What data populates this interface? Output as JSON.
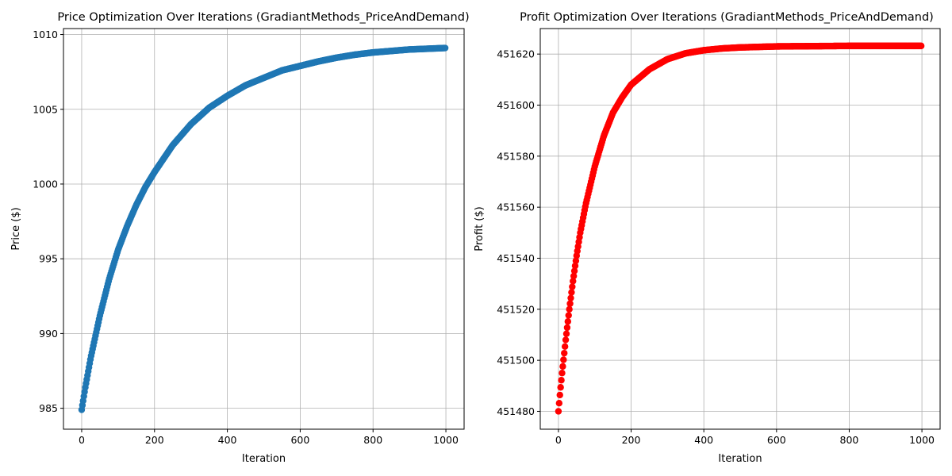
{
  "chart_data": [
    {
      "type": "scatter",
      "title": "Price Optimization Over Iterations (GradiantMethods_PriceAndDemand)",
      "xlabel": "Iteration",
      "ylabel": "Price ($)",
      "xlim": [
        -50,
        1050
      ],
      "ylim": [
        983.6,
        1010.4
      ],
      "xticks": [
        0,
        200,
        400,
        600,
        800,
        1000
      ],
      "yticks": [
        985,
        990,
        995,
        1000,
        1005,
        1010
      ],
      "grid": true,
      "series": [
        {
          "color": "#1f77b4",
          "x": [
            0,
            10,
            25,
            50,
            75,
            100,
            125,
            150,
            175,
            200,
            250,
            300,
            350,
            400,
            450,
            500,
            550,
            600,
            650,
            700,
            750,
            800,
            850,
            900,
            950,
            999
          ],
          "y": [
            984.9,
            986.4,
            988.4,
            991.2,
            993.6,
            995.6,
            997.2,
            998.6,
            999.8,
            1000.8,
            1002.6,
            1004.0,
            1005.1,
            1005.9,
            1006.6,
            1007.1,
            1007.6,
            1007.9,
            1008.2,
            1008.45,
            1008.65,
            1008.8,
            1008.9,
            1009.0,
            1009.05,
            1009.1
          ]
        }
      ]
    },
    {
      "type": "scatter",
      "title": "Profit Optimization Over Iterations (GradiantMethods_PriceAndDemand)",
      "xlabel": "Iteration",
      "ylabel": "Profit ($)",
      "xlim": [
        -50,
        1050
      ],
      "ylim": [
        451473,
        451630
      ],
      "xticks": [
        0,
        200,
        400,
        600,
        800,
        1000
      ],
      "yticks": [
        451480,
        451500,
        451520,
        451540,
        451560,
        451580,
        451600,
        451620
      ],
      "grid": true,
      "series": [
        {
          "color": "#ff0000",
          "x": [
            0,
            5,
            10,
            20,
            30,
            40,
            50,
            60,
            75,
            100,
            125,
            150,
            175,
            200,
            250,
            300,
            350,
            400,
            450,
            500,
            600,
            700,
            800,
            900,
            999
          ],
          "y": [
            451480,
            451488,
            451495,
            451508,
            451520,
            451531,
            451541,
            451550,
            451561,
            451576,
            451588,
            451597,
            451603,
            451608,
            451614,
            451618,
            451620.3,
            451621.5,
            451622.2,
            451622.6,
            451623.0,
            451623.1,
            451623.2,
            451623.2,
            451623.2
          ]
        }
      ]
    }
  ]
}
